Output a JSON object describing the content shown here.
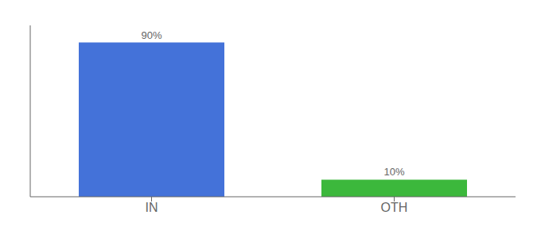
{
  "chart_data": {
    "type": "bar",
    "categories": [
      "IN",
      "OTH"
    ],
    "values": [
      90,
      10
    ],
    "value_labels": [
      "90%",
      "10%"
    ],
    "colors": [
      "#4472d9",
      "#3cb83c"
    ],
    "ylim": [
      0,
      100
    ],
    "data_labels": true,
    "tick_labels": "x",
    "grid": false
  }
}
